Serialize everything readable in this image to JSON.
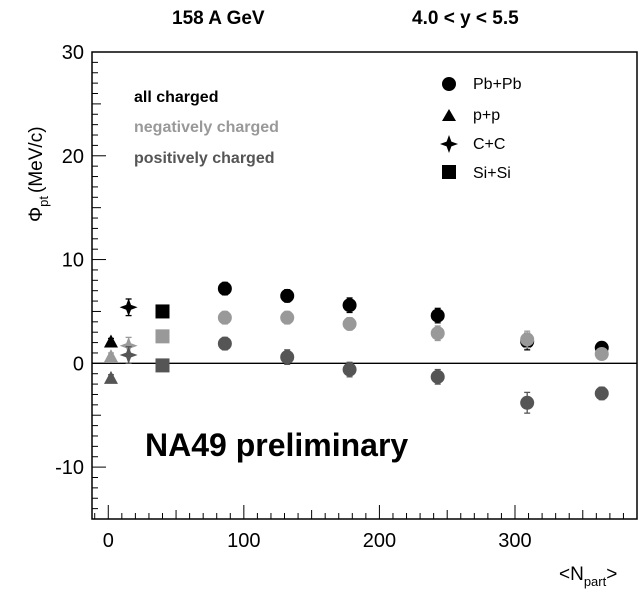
{
  "header": {
    "energy": "158 A GeV",
    "rapidity": "4.0 < y < 5.5"
  },
  "notes": {
    "all": "all charged",
    "negative": "negatively charged",
    "positive": "positively charged",
    "preliminary": "NA49 preliminary"
  },
  "colors": {
    "all": "#000000",
    "negative": "#999999",
    "positive": "#555555"
  },
  "chart_data": {
    "type": "scatter",
    "xlabel": "<N",
    "xlabel_sub": "part",
    "xlabel_end": ">",
    "ylabel_symbol": "Φ",
    "ylabel_sub": "pt",
    "ylabel_unit": "(MeV/c)",
    "xlim": [
      -12,
      390
    ],
    "ylim": [
      -15,
      30
    ],
    "xticks": [
      0,
      100,
      200,
      300
    ],
    "yticks": [
      -10,
      0,
      10,
      20,
      30
    ],
    "xtick_labels": [
      "0",
      "100",
      "200",
      "300"
    ],
    "ytick_labels": [
      "-10",
      "0",
      "10",
      "20",
      "30"
    ],
    "legend": [
      {
        "name": "Pb+Pb",
        "marker": "circle"
      },
      {
        "name": "p+p",
        "marker": "triangle"
      },
      {
        "name": "C+C",
        "marker": "star"
      },
      {
        "name": "Si+Si",
        "marker": "square"
      }
    ],
    "series": [
      {
        "system": "p+p",
        "charge": "all",
        "marker": "triangle",
        "points": [
          {
            "x": 2,
            "y": 2.1,
            "err": 0.3
          }
        ]
      },
      {
        "system": "p+p",
        "charge": "negative",
        "marker": "triangle",
        "points": [
          {
            "x": 2,
            "y": 0.7,
            "err": 0.3
          }
        ]
      },
      {
        "system": "p+p",
        "charge": "positive",
        "marker": "triangle",
        "points": [
          {
            "x": 2,
            "y": -1.4,
            "err": 0.3
          }
        ]
      },
      {
        "system": "C+C",
        "charge": "all",
        "marker": "star",
        "points": [
          {
            "x": 15,
            "y": 5.4,
            "err": 0.8
          }
        ]
      },
      {
        "system": "C+C",
        "charge": "negative",
        "marker": "star",
        "points": [
          {
            "x": 15,
            "y": 1.7,
            "err": 0.8
          }
        ]
      },
      {
        "system": "C+C",
        "charge": "positive",
        "marker": "star",
        "points": [
          {
            "x": 15,
            "y": 0.8,
            "err": 0.8
          }
        ]
      },
      {
        "system": "Si+Si",
        "charge": "all",
        "marker": "square",
        "points": [
          {
            "x": 40,
            "y": 5.0,
            "err": 0.5
          }
        ]
      },
      {
        "system": "Si+Si",
        "charge": "negative",
        "marker": "square",
        "points": [
          {
            "x": 40,
            "y": 2.6,
            "err": 0.5
          }
        ]
      },
      {
        "system": "Si+Si",
        "charge": "positive",
        "marker": "square",
        "points": [
          {
            "x": 40,
            "y": -0.2,
            "err": 0.5
          }
        ]
      },
      {
        "system": "Pb+Pb",
        "charge": "all",
        "marker": "circle",
        "points": [
          {
            "x": 86,
            "y": 7.2,
            "err": 0.6
          },
          {
            "x": 132,
            "y": 6.5,
            "err": 0.6
          },
          {
            "x": 178,
            "y": 5.6,
            "err": 0.7
          },
          {
            "x": 243,
            "y": 4.6,
            "err": 0.7
          },
          {
            "x": 309,
            "y": 2.1,
            "err": 0.8
          },
          {
            "x": 364,
            "y": 1.5,
            "err": 0.5
          }
        ]
      },
      {
        "system": "Pb+Pb",
        "charge": "negative",
        "marker": "circle",
        "points": [
          {
            "x": 86,
            "y": 4.4,
            "err": 0.6
          },
          {
            "x": 132,
            "y": 4.4,
            "err": 0.6
          },
          {
            "x": 178,
            "y": 3.8,
            "err": 0.6
          },
          {
            "x": 243,
            "y": 2.9,
            "err": 0.7
          },
          {
            "x": 309,
            "y": 2.3,
            "err": 0.8
          },
          {
            "x": 364,
            "y": 0.9,
            "err": 0.5
          }
        ]
      },
      {
        "system": "Pb+Pb",
        "charge": "positive",
        "marker": "circle",
        "points": [
          {
            "x": 86,
            "y": 1.9,
            "err": 0.6
          },
          {
            "x": 132,
            "y": 0.6,
            "err": 0.7
          },
          {
            "x": 178,
            "y": -0.6,
            "err": 0.7
          },
          {
            "x": 243,
            "y": -1.3,
            "err": 0.7
          },
          {
            "x": 309,
            "y": -3.8,
            "err": 1.0
          },
          {
            "x": 364,
            "y": -2.9,
            "err": 0.6
          }
        ]
      }
    ]
  }
}
